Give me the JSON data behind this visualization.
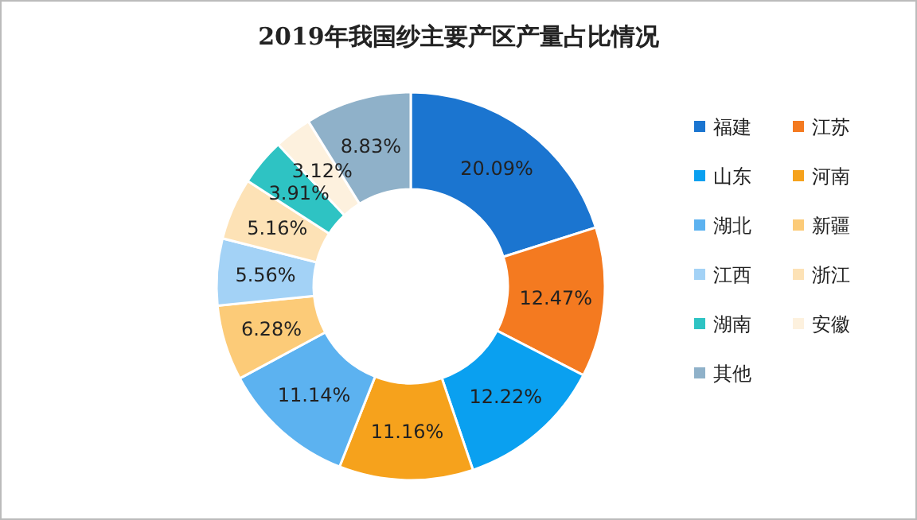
{
  "chart_data": {
    "type": "donut",
    "title": "2019年我国纱主要产区产量占比情况",
    "categories": [
      "福建",
      "江苏",
      "山东",
      "河南",
      "湖北",
      "新疆",
      "江西",
      "浙江",
      "湖南",
      "安徽",
      "其他"
    ],
    "values": [
      20.09,
      12.47,
      12.22,
      11.16,
      11.14,
      6.28,
      5.56,
      5.16,
      3.91,
      3.12,
      8.83
    ],
    "value_labels": [
      "20.09%",
      "12.47%",
      "12.22%",
      "11.16%",
      "11.14%",
      "6.28%",
      "5.56%",
      "5.16%",
      "3.91%",
      "3.12%",
      "8.83%"
    ],
    "colors": [
      "#1b75d0",
      "#f47a20",
      "#0aa0f0",
      "#f6a21c",
      "#5cb2f0",
      "#fccb78",
      "#a3d2f6",
      "#fde2b6",
      "#2ec3c3",
      "#fdf1de",
      "#8fb1c9"
    ],
    "legend": "right"
  }
}
